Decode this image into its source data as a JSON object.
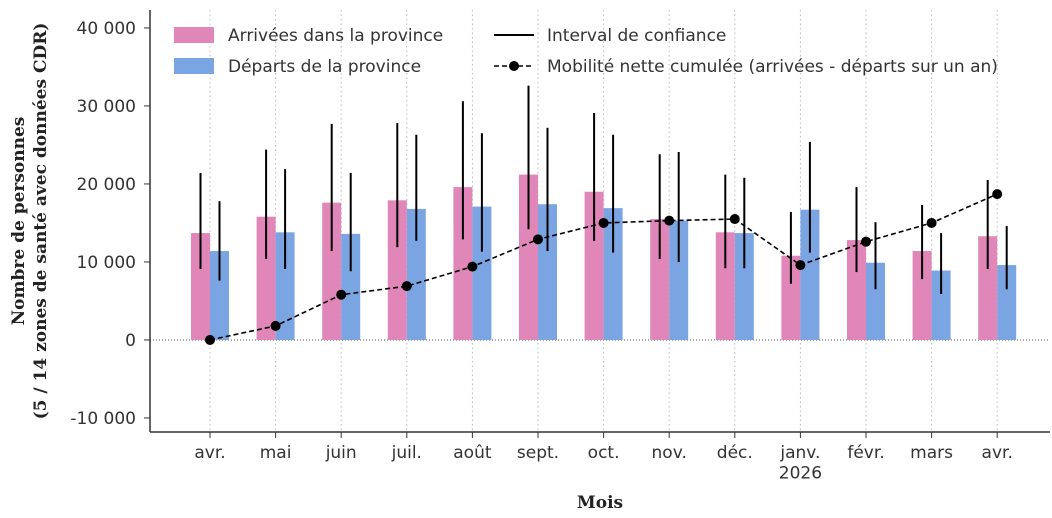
{
  "chart_data": {
    "type": "bar",
    "x_label": "Mois",
    "y_label": [
      "Nombre de personnes",
      "(5 / 14 zones de santé avec données CDR)"
    ],
    "categories": [
      "avr.",
      "mai",
      "juin",
      "juil.",
      "août",
      "sept.",
      "oct.",
      "nov.",
      "déc.",
      "janv.\n2026",
      "févr.",
      "mars",
      "avr."
    ],
    "ylim": [
      -11800,
      42300
    ],
    "yticks": [
      {
        "value": -10000,
        "label": "-10 000"
      },
      0,
      {
        "value": 10000,
        "label": "10 000"
      },
      {
        "value": 20000,
        "label": "20 000"
      },
      {
        "value": 30000,
        "label": "30 000"
      },
      {
        "value": 40000,
        "label": "40 000"
      }
    ],
    "grid": true,
    "ci_label": "Interval de confiance",
    "series": [
      {
        "name": "Arrivées dans la province",
        "color": "#e086b9",
        "values": [
          13700,
          15800,
          17600,
          17900,
          19600,
          21200,
          19000,
          15500,
          13800,
          10800,
          12800,
          11400,
          13300
        ],
        "low": [
          9100,
          10400,
          11400,
          11900,
          12900,
          14200,
          12700,
          10400,
          9200,
          7200,
          8700,
          7800,
          9100
        ],
        "high": [
          21400,
          24400,
          27700,
          27800,
          30600,
          32600,
          29100,
          23800,
          21200,
          16400,
          19600,
          17300,
          20500
        ]
      },
      {
        "name": "Départs de la province",
        "color": "#7ba4e2",
        "values": [
          11400,
          13800,
          13600,
          16800,
          17100,
          17400,
          16900,
          15300,
          13700,
          16700,
          9900,
          8900,
          9600
        ],
        "low": [
          7600,
          9100,
          8800,
          12700,
          11300,
          11400,
          11200,
          10000,
          9200,
          11200,
          6500,
          5900,
          6500
        ],
        "high": [
          17800,
          21900,
          21400,
          26300,
          26500,
          27200,
          26300,
          24100,
          20800,
          25400,
          15100,
          13700,
          14600
        ]
      },
      {
        "name": "Mobilité nette cumulée (arrivées - départs sur un an)",
        "type": "line",
        "color": "#000000",
        "values": [
          0,
          1800,
          5800,
          6900,
          9400,
          12900,
          15000,
          15300,
          15500,
          9600,
          12600,
          15000,
          18700
        ]
      }
    ]
  }
}
